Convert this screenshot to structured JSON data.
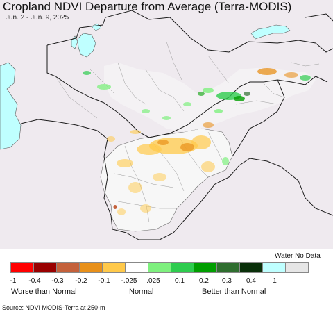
{
  "title": "Cropland NDVI Departure from Average (Terra-MODIS)",
  "subtitle": "Jun. 2 - Jun. 9, 2025",
  "legend": {
    "water_no_data_label": "Water No Data",
    "classes": [
      {
        "color": "#ff0000"
      },
      {
        "color": "#990000"
      },
      {
        "color": "#c4613b"
      },
      {
        "color": "#e8901a"
      },
      {
        "color": "#ffc94a"
      },
      {
        "color": "#ffffff"
      },
      {
        "color": "#7ef07e"
      },
      {
        "color": "#2ecc4e"
      },
      {
        "color": "#009e00"
      },
      {
        "color": "#2f6e2f"
      },
      {
        "color": "#0a300a"
      },
      {
        "color": "#bfffff"
      },
      {
        "color": "#e6e6e6"
      }
    ],
    "ticks": [
      "-1",
      "-0.4",
      "-0.3",
      "-0.2",
      "-0.1",
      "-.025",
      ".025",
      "0.1",
      "0.2",
      "0.3",
      "0.4",
      "1"
    ],
    "worse_label": "Worse than Normal",
    "normal_label": "Normal",
    "better_label": "Better than Normal"
  },
  "source": "Source: NDVI MODIS-Terra at 250-m",
  "colors": {
    "land": "#efeaef",
    "water": "#bfffff",
    "border": "#222222",
    "province_border": "#999999",
    "area_of_interest": "#f7f7f7"
  }
}
